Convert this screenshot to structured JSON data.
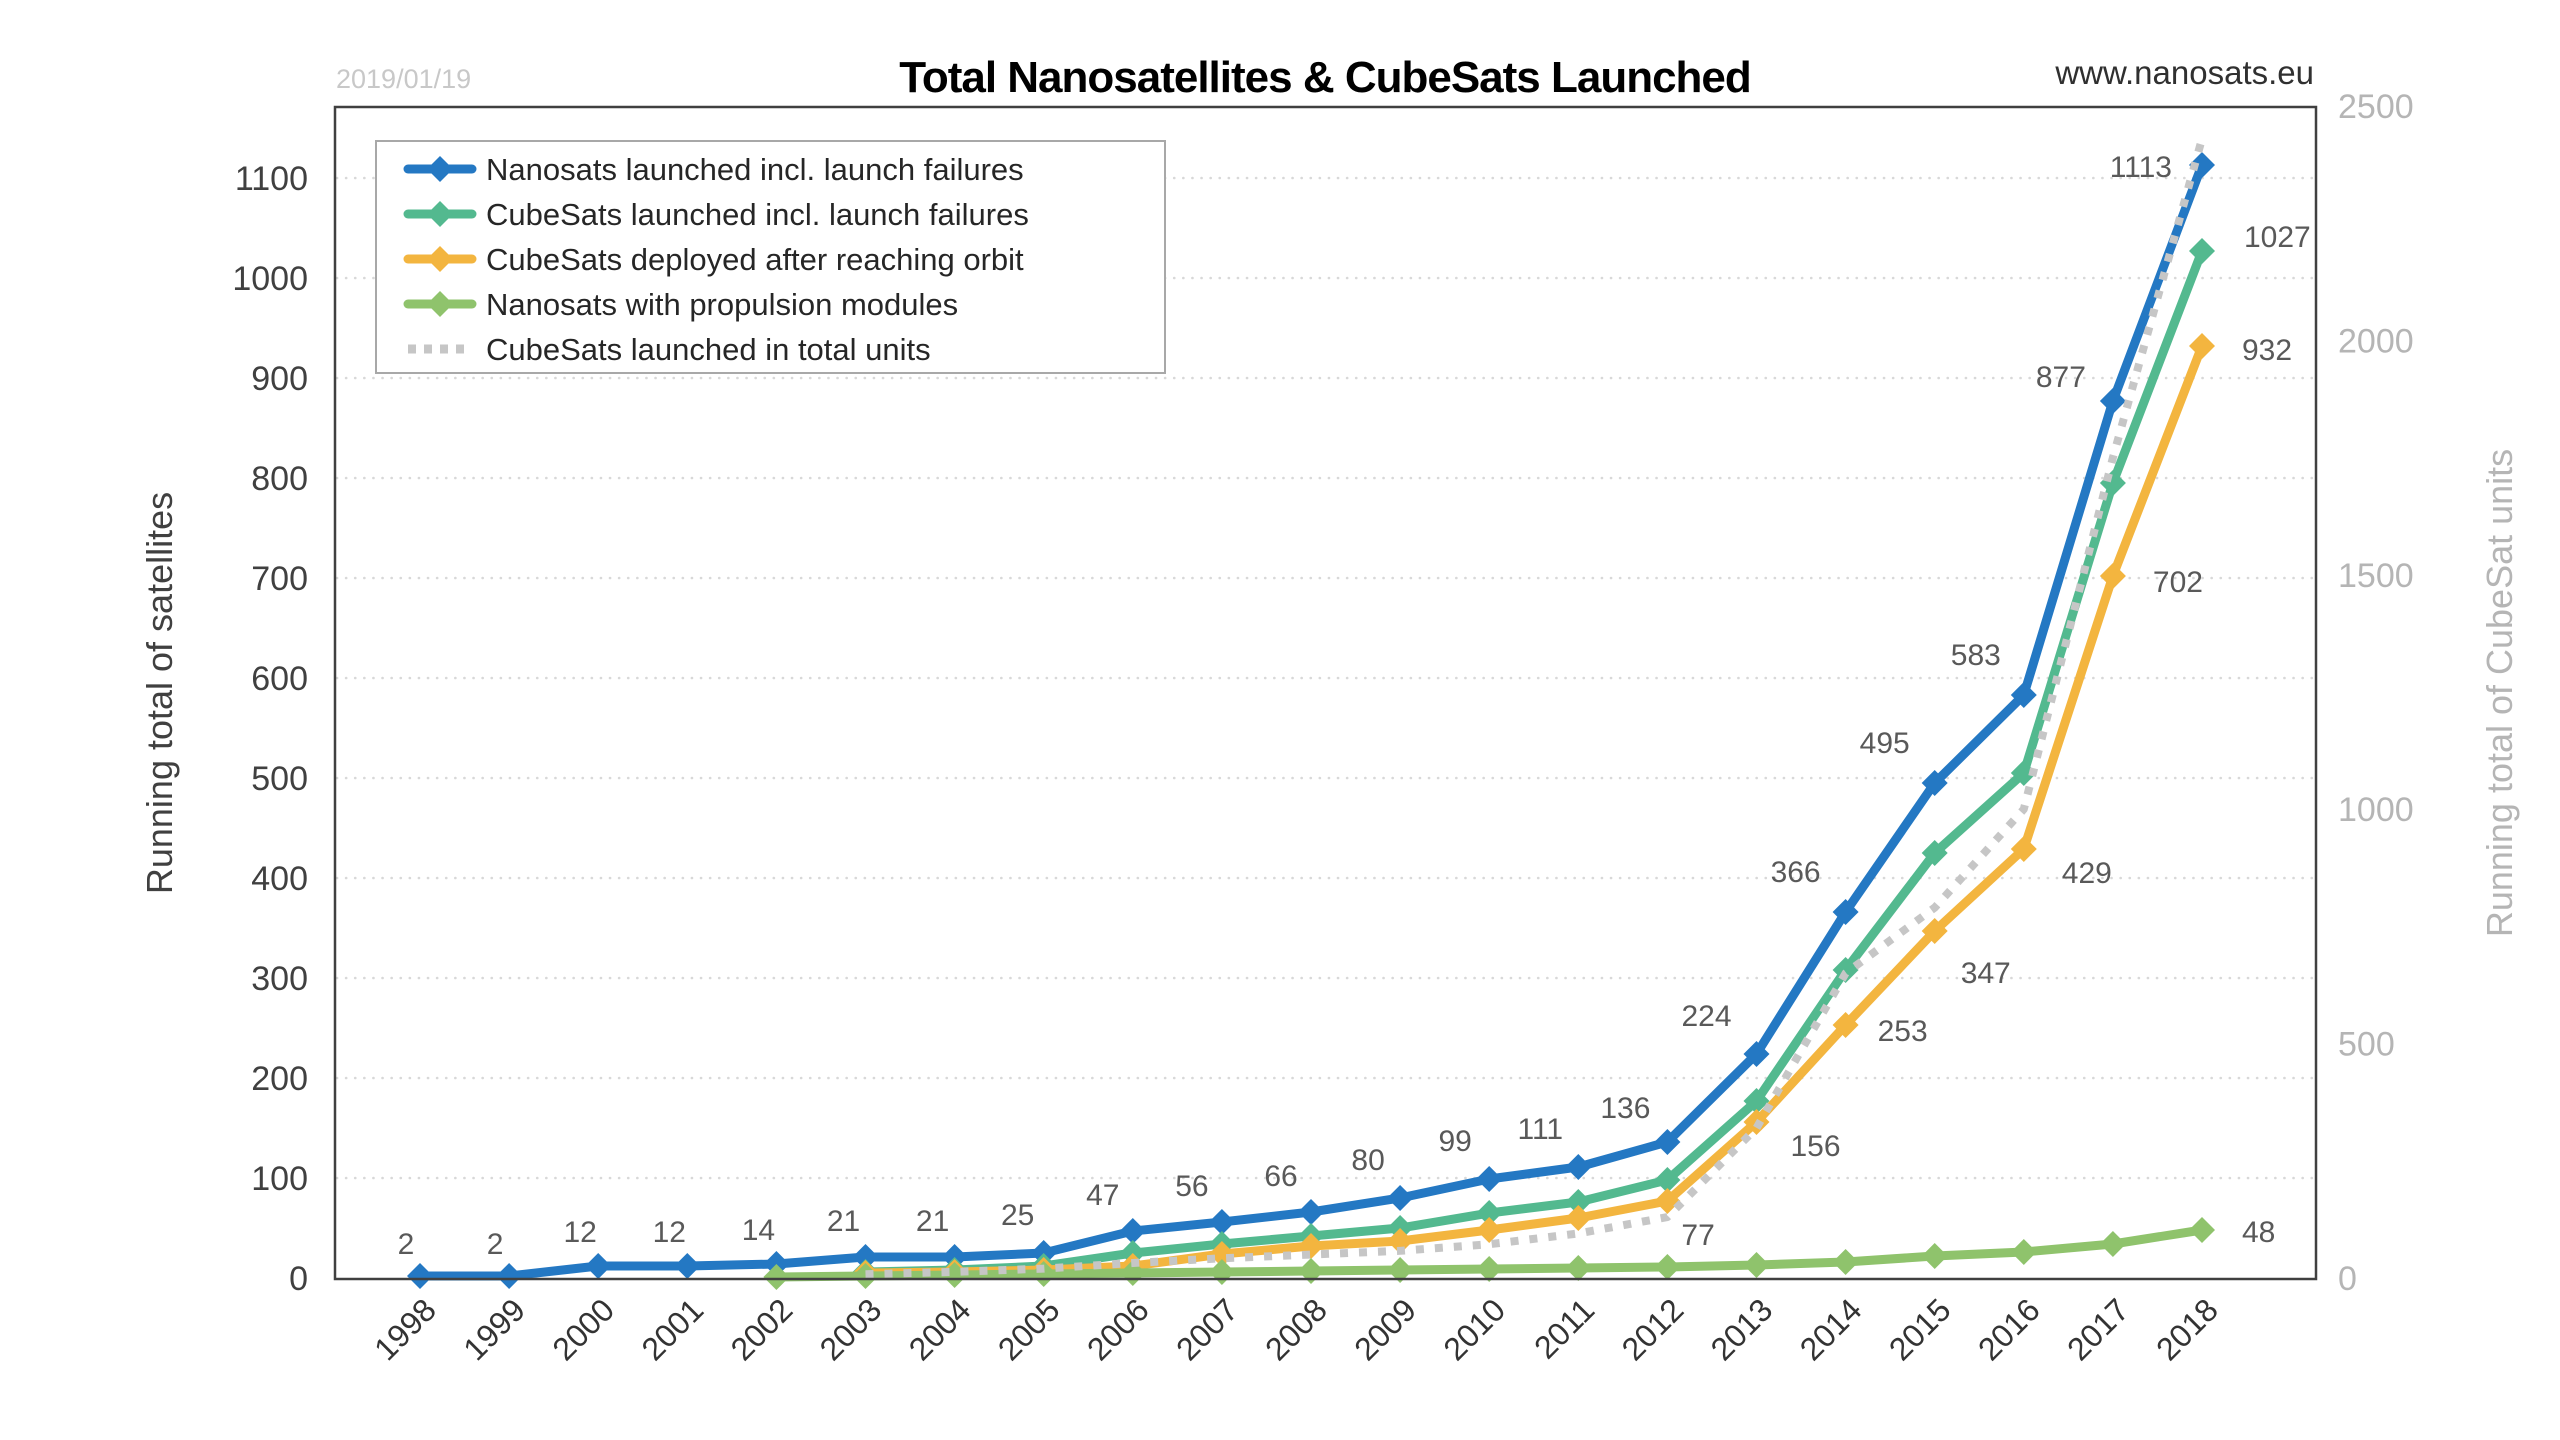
{
  "header": {
    "title": "Total Nanosatellites & CubeSats Launched",
    "date_stamp": "2019/01/19",
    "watermark": "www.nanosats.eu"
  },
  "colors": {
    "nanosats_launched": "#2478c3",
    "cubesats_launched": "#53b98f",
    "cubesats_deployed": "#f3b53f",
    "nanosats_propulsion": "#8fc36c",
    "cubesat_units": "#c6c6c6",
    "gridline": "#d8d8d8",
    "plot_border": "#404040",
    "data_label": "#595959"
  },
  "chart_data": {
    "type": "line",
    "title": "Total Nanosatellites & CubeSats Launched",
    "categories": [
      "1998",
      "1999",
      "2000",
      "2001",
      "2002",
      "2003",
      "2004",
      "2005",
      "2006",
      "2007",
      "2008",
      "2009",
      "2010",
      "2011",
      "2012",
      "2013",
      "2014",
      "2015",
      "2016",
      "2017",
      "2018"
    ],
    "left_axis": {
      "label": "Running total of satellites",
      "min": 0,
      "max": 1170,
      "ticks": [
        0,
        100,
        200,
        300,
        400,
        500,
        600,
        700,
        800,
        900,
        1000,
        1100
      ],
      "grid": "dotted"
    },
    "right_axis": {
      "label": "Running total of CubeSat units",
      "min": 0,
      "max": 2500,
      "ticks": [
        0,
        500,
        1000,
        1500,
        2000,
        2500
      ]
    },
    "legend_position": "top-left-inside",
    "series": [
      {
        "name": "Nanosats launched incl. launch failures",
        "color": "#2478c3",
        "axis": "left",
        "marker": true,
        "dashed": false,
        "values": [
          2,
          2,
          12,
          12,
          14,
          21,
          21,
          25,
          47,
          56,
          66,
          80,
          99,
          111,
          136,
          224,
          366,
          495,
          583,
          877,
          1113
        ],
        "labels": [
          {
            "year": "1998",
            "text": "2",
            "anchor": "middle",
            "dx": -14,
            "dy": -22
          },
          {
            "year": "1999",
            "text": "2",
            "anchor": "middle",
            "dx": -14,
            "dy": -22
          },
          {
            "year": "2000",
            "text": "12",
            "anchor": "middle",
            "dx": -18,
            "dy": -24
          },
          {
            "year": "2001",
            "text": "12",
            "anchor": "middle",
            "dx": -18,
            "dy": -24
          },
          {
            "year": "2002",
            "text": "14",
            "anchor": "middle",
            "dx": -18,
            "dy": -24
          },
          {
            "year": "2003",
            "text": "21",
            "anchor": "middle",
            "dx": -22,
            "dy": -26
          },
          {
            "year": "2004",
            "text": "21",
            "anchor": "middle",
            "dx": -22,
            "dy": -26
          },
          {
            "year": "2005",
            "text": "25",
            "anchor": "middle",
            "dx": -26,
            "dy": -28
          },
          {
            "year": "2006",
            "text": "47",
            "anchor": "middle",
            "dx": -30,
            "dy": -26
          },
          {
            "year": "2007",
            "text": "56",
            "anchor": "middle",
            "dx": -30,
            "dy": -26
          },
          {
            "year": "2008",
            "text": "66",
            "anchor": "middle",
            "dx": -30,
            "dy": -26
          },
          {
            "year": "2009",
            "text": "80",
            "anchor": "middle",
            "dx": -32,
            "dy": -28
          },
          {
            "year": "2010",
            "text": "99",
            "anchor": "middle",
            "dx": -34,
            "dy": -28
          },
          {
            "year": "2011",
            "text": "111",
            "anchor": "middle",
            "dx": -38,
            "dy": -28
          },
          {
            "year": "2012",
            "text": "136",
            "anchor": "middle",
            "dx": -42,
            "dy": -24
          },
          {
            "year": "2013",
            "text": "224",
            "anchor": "middle",
            "dx": -50,
            "dy": -28
          },
          {
            "year": "2014",
            "text": "366",
            "anchor": "middle",
            "dx": -50,
            "dy": -30
          },
          {
            "year": "2015",
            "text": "495",
            "anchor": "middle",
            "dx": -50,
            "dy": -30
          },
          {
            "year": "2016",
            "text": "583",
            "anchor": "middle",
            "dx": -48,
            "dy": -30
          },
          {
            "year": "2017",
            "text": "877",
            "anchor": "middle",
            "dx": -52,
            "dy": -14
          },
          {
            "year": "2018",
            "text": "1113",
            "anchor": "end",
            "dx": -30,
            "dy": 12
          }
        ]
      },
      {
        "name": "CubeSats launched incl. launch failures",
        "color": "#53b98f",
        "axis": "left",
        "marker": true,
        "dashed": false,
        "values": [
          null,
          null,
          null,
          null,
          null,
          6,
          8,
          12,
          25,
          34,
          42,
          50,
          65,
          76,
          98,
          177,
          308,
          425,
          505,
          795,
          1027
        ],
        "labels": [
          {
            "year": "2018",
            "text": "1027",
            "anchor": "start",
            "dx": 42,
            "dy": -4
          }
        ]
      },
      {
        "name": "CubeSats deployed after reaching orbit",
        "color": "#f3b53f",
        "axis": "left",
        "marker": true,
        "dashed": false,
        "values": [
          null,
          null,
          null,
          null,
          null,
          5,
          6,
          8,
          12,
          24,
          32,
          37,
          48,
          60,
          77,
          156,
          253,
          347,
          429,
          702,
          932
        ],
        "labels": [
          {
            "year": "2012",
            "text": "77",
            "anchor": "start",
            "dx": 14,
            "dy": 44
          },
          {
            "year": "2013",
            "text": "156",
            "anchor": "start",
            "dx": 34,
            "dy": 34
          },
          {
            "year": "2014",
            "text": "253",
            "anchor": "start",
            "dx": 32,
            "dy": 16
          },
          {
            "year": "2015",
            "text": "347",
            "anchor": "start",
            "dx": 26,
            "dy": 52
          },
          {
            "year": "2016",
            "text": "429",
            "anchor": "start",
            "dx": 38,
            "dy": 34
          },
          {
            "year": "2017",
            "text": "702",
            "anchor": "start",
            "dx": 40,
            "dy": 16
          },
          {
            "year": "2018",
            "text": "932",
            "anchor": "start",
            "dx": 40,
            "dy": 14
          }
        ]
      },
      {
        "name": "Nanosats with propulsion modules",
        "color": "#8fc36c",
        "axis": "left",
        "marker": true,
        "dashed": false,
        "values": [
          null,
          null,
          null,
          null,
          1,
          2,
          3,
          4,
          5,
          6,
          7,
          8,
          9,
          10,
          11,
          13,
          16,
          22,
          26,
          34,
          48
        ],
        "labels": [
          {
            "year": "2018",
            "text": "48",
            "anchor": "start",
            "dx": 40,
            "dy": 12
          }
        ]
      },
      {
        "name": "CubeSats launched in total units",
        "color": "#c6c6c6",
        "axis": "right",
        "marker": false,
        "dashed": true,
        "values": [
          null,
          null,
          null,
          null,
          null,
          8,
          13,
          20,
          32,
          42,
          50,
          58,
          72,
          95,
          130,
          320,
          650,
          790,
          1000,
          1750,
          2430
        ],
        "labels": []
      }
    ]
  },
  "legend": {
    "items": [
      {
        "label": "Nanosats launched incl. launch failures",
        "color": "#2478c3",
        "dashed": false
      },
      {
        "label": "CubeSats launched incl. launch failures",
        "color": "#53b98f",
        "dashed": false
      },
      {
        "label": "CubeSats deployed after reaching orbit",
        "color": "#f3b53f",
        "dashed": false
      },
      {
        "label": "Nanosats with propulsion modules",
        "color": "#8fc36c",
        "dashed": false
      },
      {
        "label": "CubeSats launched in total units",
        "color": "#c6c6c6",
        "dashed": true
      }
    ]
  }
}
